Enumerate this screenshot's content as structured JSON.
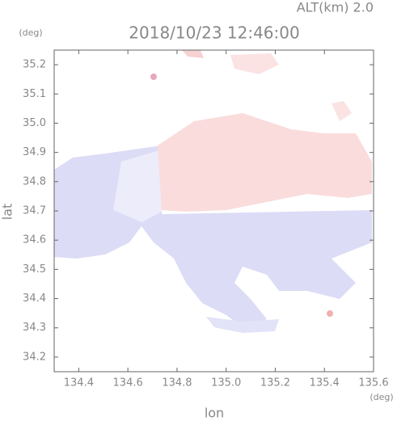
{
  "chart_data": {
    "type": "map",
    "title": "2018/10/23 12:46:00",
    "subtitle": "ALT(km) 2.0",
    "x_label": "lon",
    "x_unit": "(deg)",
    "y_label": "lat",
    "y_unit": "(deg)",
    "xlim": [
      134.3,
      135.6
    ],
    "xticks": [
      134.4,
      134.6,
      134.8,
      {
        "value": 135,
        "label": "135.0"
      },
      135.2,
      135.4,
      135.6
    ],
    "ylim": [
      34.15,
      35.25
    ],
    "yticks": [
      34.2,
      34.3,
      34.4,
      34.5,
      34.6,
      34.7,
      34.8,
      34.9,
      {
        "value": 35,
        "label": "35.0"
      },
      35.1,
      35.2
    ]
  }
}
